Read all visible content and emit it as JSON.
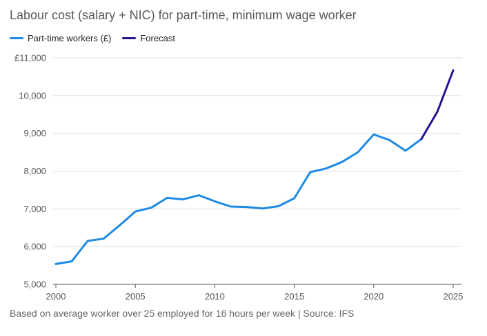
{
  "chart_data": {
    "type": "line",
    "title": "Labour cost (salary + NIC) for part-time, minimum wage worker",
    "footnote": "Based on average worker over 25 employed for 16 hours per week | Source: IFS",
    "xlim": [
      2000,
      2025
    ],
    "ylim": [
      5000,
      11000
    ],
    "x_ticks": [
      2000,
      2005,
      2010,
      2015,
      2020,
      2025
    ],
    "y_ticks": [
      5000,
      6000,
      7000,
      8000,
      9000,
      10000,
      11000
    ],
    "y_tick_labels": [
      "5,000",
      "6,000",
      "7,000",
      "8,000",
      "9,000",
      "10,000",
      "£11,000"
    ],
    "grid": "horizontal",
    "legend_position": "top-left",
    "series": [
      {
        "name": "Part-time workers (£)",
        "color": "#1e8ae6",
        "x": [
          2000,
          2001,
          2002,
          2003,
          2004,
          2005,
          2006,
          2007,
          2008,
          2009,
          2010,
          2011,
          2012,
          2013,
          2014,
          2015,
          2016,
          2017,
          2018,
          2019,
          2020,
          2021,
          2022,
          2023
        ],
        "y": [
          5540,
          5610,
          6150,
          6210,
          6560,
          6930,
          7030,
          7290,
          7250,
          7360,
          7200,
          7060,
          7050,
          7010,
          7070,
          7280,
          7970,
          8070,
          8240,
          8500,
          8970,
          8820,
          8540,
          8850
        ]
      },
      {
        "name": "Forecast",
        "color": "#2b0f8f",
        "x": [
          2023,
          2024,
          2025
        ],
        "y": [
          8850,
          9570,
          10670
        ]
      }
    ]
  }
}
